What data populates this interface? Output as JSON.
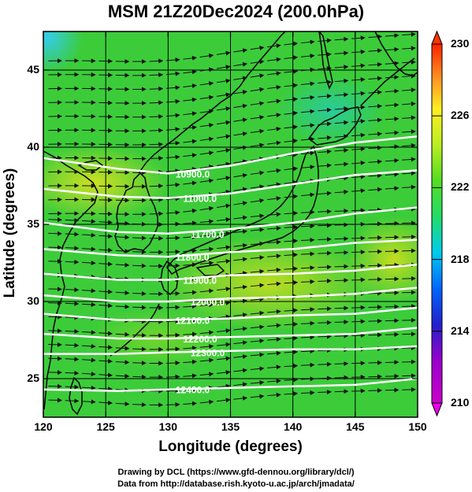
{
  "title": "MSM 21Z20Dec2024 (200.0hPa)",
  "xlabel": "Longitude (degrees)",
  "ylabel": "Latitude  (degrees)",
  "x_ticks": [
    "120",
    "125",
    "130",
    "135",
    "140",
    "145",
    "150"
  ],
  "y_ticks": [
    "25",
    "30",
    "35",
    "40",
    "45"
  ],
  "colorbar_ticks": [
    "210",
    "214",
    "218",
    "222",
    "226",
    "230"
  ],
  "credits": {
    "line1": "Drawing by DCL (https://www.gfd-dennou.org/library/dcl/)",
    "line2": "Data from http://database.rish.kyoto-u.ac.jp/arch/jmadata/"
  },
  "colors": {
    "field_dominant": "#33cc33",
    "contour": "#ffffff",
    "vector": "#111111",
    "coastline": "#000000"
  },
  "chart_data": {
    "type": "heatmap",
    "title": "MSM 21Z20Dec2024 (200.0hPa)",
    "xlabel": "Longitude (degrees)",
    "ylabel": "Latitude  (degrees)",
    "xlim": [
      120,
      150
    ],
    "ylim": [
      22.5,
      47.5
    ],
    "colorbar": {
      "min": 210,
      "max": 230,
      "ticks": [
        210,
        214,
        218,
        222,
        226,
        230
      ]
    },
    "field_samples": [
      {
        "lon": 120.5,
        "lat": 46.5,
        "value": 218.5
      },
      {
        "lon": 142,
        "lat": 42,
        "value": 220.5
      },
      {
        "lon": 124,
        "lat": 38,
        "value": 224.5
      },
      {
        "lon": 137,
        "lat": 32,
        "value": 224
      },
      {
        "lon": 146,
        "lat": 33.5,
        "value": 225
      },
      {
        "lon": 135,
        "lat": 26,
        "value": 222
      }
    ],
    "contours": [
      {
        "label": "10900.0",
        "points": [
          [
            120,
            39.3
          ],
          [
            126,
            38.6
          ],
          [
            130,
            38.3
          ],
          [
            135,
            38.8
          ],
          [
            140,
            39.6
          ],
          [
            145,
            40.3
          ],
          [
            150,
            40.7
          ]
        ]
      },
      {
        "label": "11000.0",
        "points": [
          [
            120,
            37.3
          ],
          [
            126,
            36.8
          ],
          [
            130,
            36.7
          ],
          [
            135,
            37.0
          ],
          [
            140,
            37.6
          ],
          [
            145,
            38.2
          ],
          [
            150,
            38.5
          ]
        ]
      },
      {
        "label": "11700.0",
        "points": [
          [
            120,
            35.1
          ],
          [
            126,
            34.5
          ],
          [
            130,
            34.4
          ],
          [
            135,
            34.7
          ],
          [
            140,
            35.1
          ],
          [
            145,
            35.7
          ],
          [
            150,
            36.1
          ]
        ]
      },
      {
        "label": "11800.0",
        "points": [
          [
            120,
            33.4
          ],
          [
            126,
            33.0
          ],
          [
            130,
            32.9
          ],
          [
            135,
            33.2
          ],
          [
            140,
            33.4
          ],
          [
            145,
            33.8
          ],
          [
            150,
            34.0
          ]
        ]
      },
      {
        "label": "11900.0",
        "points": [
          [
            120,
            31.8
          ],
          [
            126,
            31.4
          ],
          [
            130,
            31.4
          ],
          [
            135,
            31.7
          ],
          [
            140,
            31.8
          ],
          [
            145,
            32.0
          ],
          [
            150,
            32.4
          ]
        ]
      },
      {
        "label": "12000.0",
        "points": [
          [
            120,
            30.4
          ],
          [
            126,
            30.0
          ],
          [
            130,
            30.0
          ],
          [
            135,
            30.2
          ],
          [
            140,
            30.3
          ],
          [
            145,
            30.5
          ],
          [
            150,
            30.9
          ]
        ]
      },
      {
        "label": "12100.0",
        "points": [
          [
            120,
            29.2
          ],
          [
            126,
            28.8
          ],
          [
            130,
            28.8
          ],
          [
            135,
            28.9
          ],
          [
            140,
            29.1
          ],
          [
            145,
            29.2
          ],
          [
            150,
            29.6
          ]
        ]
      },
      {
        "label": "12200.0",
        "points": [
          [
            120,
            27.9
          ],
          [
            126,
            27.6
          ],
          [
            130,
            27.6
          ],
          [
            135,
            27.7
          ],
          [
            140,
            27.8
          ],
          [
            145,
            27.9
          ],
          [
            150,
            28.3
          ]
        ]
      },
      {
        "label": "12300.0",
        "points": [
          [
            120,
            26.6
          ],
          [
            126,
            26.6
          ],
          [
            130,
            26.7
          ],
          [
            135,
            26.8
          ],
          [
            140,
            26.9
          ],
          [
            145,
            26.9
          ],
          [
            150,
            27.1
          ]
        ]
      },
      {
        "label": "12400.0",
        "points": [
          [
            120,
            24.3
          ],
          [
            126,
            24.2
          ],
          [
            130,
            24.3
          ],
          [
            135,
            24.4
          ],
          [
            140,
            24.5
          ],
          [
            145,
            24.6
          ],
          [
            150,
            25.0
          ]
        ]
      }
    ]
  }
}
